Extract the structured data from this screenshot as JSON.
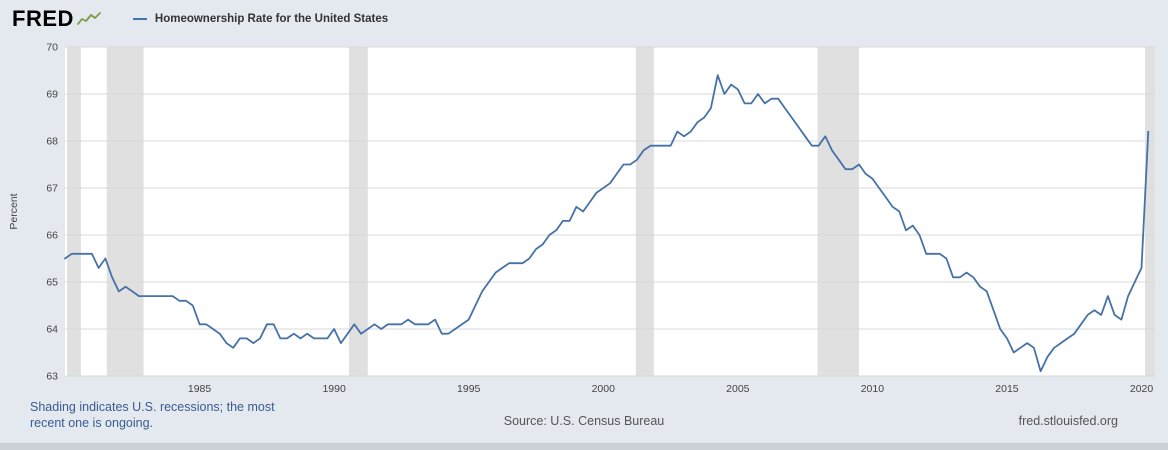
{
  "header": {
    "logo": "FRED",
    "series_title": "Homeownership Rate for the United States"
  },
  "footer": {
    "note_line1": "Shading indicates U.S. recessions; the most",
    "note_line2": "recent one is ongoing.",
    "source": "Source: U.S. Census Bureau",
    "site": "fred.stlouisfed.org"
  },
  "colors": {
    "line": "#4572a7",
    "recession": "#e0e0e0",
    "grid": "#d9d9d9",
    "plot_bg": "#ffffff",
    "page_bg": "#e3e9ef",
    "note_text": "#3b5b92",
    "axis_text": "#444444",
    "logo_squiggle": "#7d9d44"
  },
  "chart_data": {
    "type": "line",
    "title": "Homeownership Rate for the United States",
    "xlabel": "",
    "ylabel": "Percent",
    "x_start": 1980.0,
    "x_step": 0.25,
    "x_range": [
      1980.0,
      2020.5
    ],
    "ylim": [
      63,
      70
    ],
    "y_ticks": [
      63,
      64,
      65,
      66,
      67,
      68,
      69,
      70
    ],
    "x_ticks": [
      1985,
      1990,
      1995,
      2000,
      2005,
      2010,
      2015,
      2020
    ],
    "grid": true,
    "legend_position": "top-left",
    "recessions": [
      [
        1980.08,
        1980.59
      ],
      [
        1981.55,
        1982.92
      ],
      [
        1990.55,
        1991.25
      ],
      [
        2001.21,
        2001.88
      ],
      [
        2007.96,
        2009.5
      ],
      [
        2020.13,
        2020.5
      ]
    ],
    "values": [
      65.5,
      65.6,
      65.6,
      65.6,
      65.6,
      65.3,
      65.5,
      65.1,
      64.8,
      64.9,
      64.8,
      64.7,
      64.7,
      64.7,
      64.7,
      64.7,
      64.7,
      64.6,
      64.6,
      64.5,
      64.1,
      64.1,
      64.0,
      63.9,
      63.7,
      63.6,
      63.8,
      63.8,
      63.7,
      63.8,
      64.1,
      64.1,
      63.8,
      63.8,
      63.9,
      63.8,
      63.9,
      63.8,
      63.8,
      63.8,
      64.0,
      63.7,
      63.9,
      64.1,
      63.9,
      64.0,
      64.1,
      64.0,
      64.1,
      64.1,
      64.1,
      64.2,
      64.1,
      64.1,
      64.1,
      64.2,
      63.9,
      63.9,
      64.0,
      64.1,
      64.2,
      64.5,
      64.8,
      65.0,
      65.2,
      65.3,
      65.4,
      65.4,
      65.4,
      65.5,
      65.7,
      65.8,
      66.0,
      66.1,
      66.3,
      66.3,
      66.6,
      66.5,
      66.7,
      66.9,
      67.0,
      67.1,
      67.3,
      67.5,
      67.5,
      67.6,
      67.8,
      67.9,
      67.9,
      67.9,
      67.9,
      68.2,
      68.1,
      68.2,
      68.4,
      68.5,
      68.7,
      69.4,
      69.0,
      69.2,
      69.1,
      68.8,
      68.8,
      69.0,
      68.8,
      68.9,
      68.9,
      68.7,
      68.5,
      68.3,
      68.1,
      67.9,
      67.9,
      68.1,
      67.8,
      67.6,
      67.4,
      67.4,
      67.5,
      67.3,
      67.2,
      67.0,
      66.8,
      66.6,
      66.5,
      66.1,
      66.2,
      66.0,
      65.6,
      65.6,
      65.6,
      65.5,
      65.1,
      65.1,
      65.2,
      65.1,
      64.9,
      64.8,
      64.4,
      64.0,
      63.8,
      63.5,
      63.6,
      63.7,
      63.6,
      63.1,
      63.4,
      63.6,
      63.7,
      63.8,
      63.9,
      64.1,
      64.3,
      64.4,
      64.3,
      64.7,
      64.3,
      64.2,
      64.7,
      65.0,
      65.3,
      68.2
    ]
  }
}
